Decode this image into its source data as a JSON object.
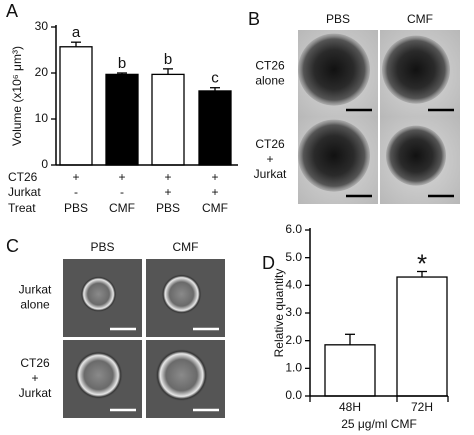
{
  "panel_labels": [
    "A",
    "B",
    "C",
    "D"
  ],
  "chart_data": [
    {
      "type": "bar",
      "y_label": "Volume (x10⁶ μm³)",
      "categories": [
        "PBS",
        "CMF",
        "PBS",
        "CMF"
      ],
      "values": [
        25.7,
        19.7,
        19.7,
        16.1
      ],
      "errors": [
        1.0,
        0.3,
        1.2,
        0.7
      ],
      "colors": [
        "#ffffff",
        "#000000",
        "#ffffff",
        "#000000"
      ],
      "bar_labels": [
        "a",
        "b",
        "b",
        "c"
      ],
      "ylim": [
        0,
        30
      ],
      "yticks": [
        0,
        10,
        20,
        30
      ],
      "table": {
        "row_labels": [
          "CT26",
          "Jurkat",
          "Treat"
        ],
        "rows": [
          [
            "+",
            "+",
            "+",
            "+"
          ],
          [
            "-",
            "-",
            "+",
            "+"
          ]
        ]
      }
    },
    {
      "type": "bar",
      "y_label": "Relative quantity",
      "x_label": "25 μg/ml CMF",
      "categories": [
        "48H",
        "72H"
      ],
      "values": [
        1.85,
        4.3
      ],
      "errors": [
        0.38,
        0.2
      ],
      "colors": [
        "#ffffff",
        "#ffffff"
      ],
      "bar_labels": [
        null,
        "*"
      ],
      "ylim": [
        0,
        6
      ],
      "yticks": [
        {
          "value": 0,
          "label": "0.0"
        },
        {
          "value": 1,
          "label": "1.0"
        },
        {
          "value": 2,
          "label": "2.0"
        },
        {
          "value": 3,
          "label": "3.0"
        },
        {
          "value": 4,
          "label": "4.0"
        },
        {
          "value": 5,
          "label": "5.0"
        },
        {
          "value": 6,
          "label": "6.0"
        }
      ]
    }
  ],
  "panel_b": {
    "column_headers": [
      "PBS",
      "CMF"
    ],
    "row_labels": [
      [
        "CT26",
        "alone"
      ],
      [
        "CT26",
        "+",
        "Jurkat"
      ]
    ]
  },
  "panel_c": {
    "column_headers": [
      "PBS",
      "CMF"
    ],
    "row_labels": [
      [
        "Jurkat",
        "alone"
      ],
      [
        "CT26",
        "+",
        "Jurkat"
      ]
    ]
  }
}
